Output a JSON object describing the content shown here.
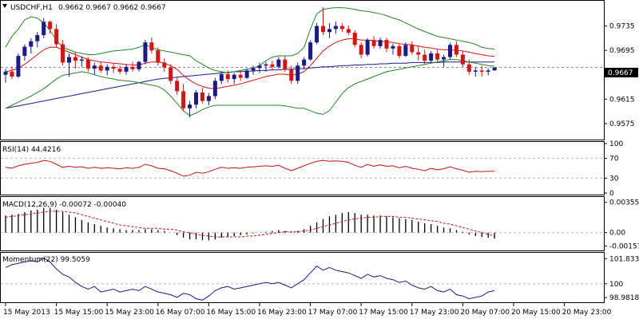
{
  "chart_data": {
    "type": "candlestick",
    "symbol": "USDCHF",
    "timeframe": "H1",
    "title": "USDCHF,H1",
    "ohlc_text": "0.9662 0.9667 0.9662 0.9667",
    "last_price_label": "0.9667",
    "colors": {
      "bull": "#1a1a8c",
      "bear": "#e01010",
      "bollinger": "#1f8a1f",
      "ma_red": "#e01010",
      "ma_blue": "#1a1a8c",
      "rsi_line": "#cc1010",
      "macd_hist": "#000000",
      "macd_signal": "#cc1010",
      "momentum_line": "#1a1a8c",
      "grid": "#b8b8b8",
      "axis": "#000000"
    },
    "main_pane": {
      "ylim": [
        0.955,
        0.9775
      ],
      "yticks": [
        "0.9735",
        "0.9695",
        "0.9655",
        "0.9615",
        "0.9575"
      ],
      "dashed_level": 0.9667,
      "candles": [
        [
          0.9655,
          0.9665,
          0.9642,
          0.966
        ],
        [
          0.966,
          0.9668,
          0.9648,
          0.9652
        ],
        [
          0.9652,
          0.969,
          0.965,
          0.9686
        ],
        [
          0.9686,
          0.9705,
          0.9678,
          0.9701
        ],
        [
          0.9701,
          0.9715,
          0.969,
          0.971
        ],
        [
          0.971,
          0.9725,
          0.97,
          0.972
        ],
        [
          0.972,
          0.9748,
          0.9715,
          0.9742
        ],
        [
          0.9742,
          0.9744,
          0.9722,
          0.973
        ],
        [
          0.973,
          0.9738,
          0.97,
          0.9705
        ],
        [
          0.9705,
          0.9712,
          0.967,
          0.9675
        ],
        [
          0.9675,
          0.969,
          0.9652,
          0.9684
        ],
        [
          0.9684,
          0.9692,
          0.9665,
          0.9678
        ],
        [
          0.9678,
          0.9685,
          0.9668,
          0.968
        ],
        [
          0.968,
          0.9684,
          0.966,
          0.9665
        ],
        [
          0.9665,
          0.9675,
          0.9655,
          0.967
        ],
        [
          0.967,
          0.9676,
          0.9658,
          0.9662
        ],
        [
          0.9662,
          0.9672,
          0.9654,
          0.9668
        ],
        [
          0.9668,
          0.9674,
          0.9658,
          0.9665
        ],
        [
          0.9665,
          0.967,
          0.9656,
          0.966
        ],
        [
          0.966,
          0.9672,
          0.9655,
          0.9668
        ],
        [
          0.9668,
          0.9676,
          0.966,
          0.9664
        ],
        [
          0.9664,
          0.9678,
          0.966,
          0.9676
        ],
        [
          0.9676,
          0.9712,
          0.9672,
          0.9708
        ],
        [
          0.9708,
          0.9716,
          0.969,
          0.9695
        ],
        [
          0.9695,
          0.97,
          0.967,
          0.9675
        ],
        [
          0.9675,
          0.9682,
          0.966,
          0.9667
        ],
        [
          0.9667,
          0.9672,
          0.964,
          0.9645
        ],
        [
          0.9645,
          0.9652,
          0.9622,
          0.9628
        ],
        [
          0.9628,
          0.964,
          0.9595,
          0.96
        ],
        [
          0.96,
          0.9612,
          0.9585,
          0.9606
        ],
        [
          0.9606,
          0.963,
          0.96,
          0.9626
        ],
        [
          0.9626,
          0.9634,
          0.9608,
          0.9612
        ],
        [
          0.9612,
          0.9625,
          0.9605,
          0.962
        ],
        [
          0.962,
          0.965,
          0.9615,
          0.9645
        ],
        [
          0.9645,
          0.966,
          0.964,
          0.9656
        ],
        [
          0.9656,
          0.9662,
          0.9642,
          0.9648
        ],
        [
          0.9648,
          0.9658,
          0.964,
          0.9655
        ],
        [
          0.9655,
          0.9662,
          0.9645,
          0.965
        ],
        [
          0.965,
          0.9665,
          0.9648,
          0.9662
        ],
        [
          0.9662,
          0.967,
          0.9655,
          0.9666
        ],
        [
          0.9666,
          0.9675,
          0.9658,
          0.967
        ],
        [
          0.967,
          0.9676,
          0.966,
          0.9672
        ],
        [
          0.9672,
          0.9678,
          0.9662,
          0.9668
        ],
        [
          0.9668,
          0.9684,
          0.9665,
          0.968
        ],
        [
          0.968,
          0.9686,
          0.966,
          0.9664
        ],
        [
          0.9664,
          0.967,
          0.964,
          0.9645
        ],
        [
          0.9645,
          0.9675,
          0.964,
          0.967
        ],
        [
          0.967,
          0.9684,
          0.9665,
          0.968
        ],
        [
          0.968,
          0.9712,
          0.9678,
          0.9708
        ],
        [
          0.9708,
          0.974,
          0.9705,
          0.9735
        ],
        [
          0.9735,
          0.9765,
          0.972,
          0.9725
        ],
        [
          0.9725,
          0.974,
          0.9715,
          0.973
        ],
        [
          0.973,
          0.9742,
          0.9722,
          0.9735
        ],
        [
          0.9735,
          0.974,
          0.9725,
          0.973
        ],
        [
          0.973,
          0.9736,
          0.972,
          0.9724
        ],
        [
          0.9724,
          0.9728,
          0.97,
          0.9704
        ],
        [
          0.9704,
          0.9708,
          0.9682,
          0.9688
        ],
        [
          0.9688,
          0.9715,
          0.9685,
          0.9712
        ],
        [
          0.9712,
          0.9718,
          0.9698,
          0.9702
        ],
        [
          0.9702,
          0.9716,
          0.9698,
          0.9712
        ],
        [
          0.9712,
          0.9716,
          0.9692,
          0.9698
        ],
        [
          0.9698,
          0.9706,
          0.9688,
          0.9702
        ],
        [
          0.9702,
          0.9706,
          0.9682,
          0.9686
        ],
        [
          0.9686,
          0.9708,
          0.9684,
          0.9704
        ],
        [
          0.9704,
          0.971,
          0.9688,
          0.9692
        ],
        [
          0.9692,
          0.9702,
          0.9678,
          0.9688
        ],
        [
          0.9688,
          0.9696,
          0.9672,
          0.9678
        ],
        [
          0.9678,
          0.9694,
          0.9675,
          0.969
        ],
        [
          0.969,
          0.9696,
          0.9676,
          0.968
        ],
        [
          0.968,
          0.9688,
          0.9668,
          0.9684
        ],
        [
          0.9684,
          0.9708,
          0.968,
          0.9704
        ],
        [
          0.9704,
          0.971,
          0.9684,
          0.9688
        ],
        [
          0.9688,
          0.9694,
          0.9668,
          0.9672
        ],
        [
          0.9672,
          0.968,
          0.9655,
          0.966
        ],
        [
          0.966,
          0.9668,
          0.9652,
          0.9662
        ],
        [
          0.9662,
          0.967,
          0.9652,
          0.966
        ],
        [
          0.966,
          0.9666,
          0.9654,
          0.9662
        ],
        [
          0.9662,
          0.9667,
          0.9662,
          0.9667
        ]
      ],
      "bb_upper": [
        0.97,
        0.9718,
        0.973,
        0.9745,
        0.975,
        0.9748,
        0.974,
        0.9728,
        0.9712,
        0.97,
        0.9696,
        0.9692,
        0.969,
        0.9688,
        0.9688,
        0.969,
        0.9692,
        0.9694,
        0.9695,
        0.9696,
        0.9697,
        0.97,
        0.9704,
        0.97,
        0.9696,
        0.9694,
        0.9692,
        0.969,
        0.9688,
        0.9686,
        0.9678,
        0.9672,
        0.9666,
        0.9662,
        0.966,
        0.9658,
        0.966,
        0.9662,
        0.9664,
        0.9666,
        0.967,
        0.9678,
        0.9684,
        0.9686,
        0.9686,
        0.9686,
        0.969,
        0.97,
        0.973,
        0.9755,
        0.9762,
        0.9764,
        0.9765,
        0.9765,
        0.9764,
        0.9762,
        0.976,
        0.9759,
        0.9757,
        0.9755,
        0.9752,
        0.9748,
        0.9745,
        0.974,
        0.9735,
        0.973,
        0.9726,
        0.9722,
        0.9718,
        0.9716,
        0.9714,
        0.9712,
        0.971,
        0.9708,
        0.9705,
        0.97,
        0.9698,
        0.9697
      ],
      "bb_lower": [
        0.96,
        0.9605,
        0.961,
        0.9615,
        0.962,
        0.9626,
        0.9632,
        0.964,
        0.9648,
        0.9654,
        0.9656,
        0.9658,
        0.966,
        0.9658,
        0.9655,
        0.9652,
        0.965,
        0.9648,
        0.9646,
        0.9645,
        0.9644,
        0.9642,
        0.964,
        0.9638,
        0.9636,
        0.963,
        0.962,
        0.9608,
        0.9596,
        0.9588,
        0.9592,
        0.9598,
        0.9602,
        0.9605,
        0.9605,
        0.9605,
        0.9605,
        0.9605,
        0.9605,
        0.9605,
        0.9605,
        0.9605,
        0.9605,
        0.9605,
        0.9604,
        0.9602,
        0.96,
        0.96,
        0.9596,
        0.9592,
        0.959,
        0.9596,
        0.961,
        0.9624,
        0.9634,
        0.964,
        0.9644,
        0.9648,
        0.9652,
        0.9656,
        0.966,
        0.9662,
        0.9664,
        0.9666,
        0.9668,
        0.967,
        0.9672,
        0.9674,
        0.9676,
        0.9678,
        0.968,
        0.968,
        0.9678,
        0.9676,
        0.9674,
        0.9672,
        0.967,
        0.9669
      ],
      "ma_red": [
        0.966,
        0.9662,
        0.9666,
        0.9672,
        0.968,
        0.9688,
        0.9696,
        0.97,
        0.97,
        0.9696,
        0.9692,
        0.9688,
        0.9684,
        0.968,
        0.9678,
        0.9676,
        0.9675,
        0.9674,
        0.9673,
        0.9672,
        0.9671,
        0.9671,
        0.9674,
        0.9676,
        0.9676,
        0.9674,
        0.967,
        0.9664,
        0.9654,
        0.9646,
        0.964,
        0.9636,
        0.9633,
        0.9632,
        0.9634,
        0.9636,
        0.9638,
        0.964,
        0.9643,
        0.9646,
        0.9649,
        0.9652,
        0.9654,
        0.9656,
        0.9656,
        0.9654,
        0.9656,
        0.966,
        0.967,
        0.9682,
        0.9694,
        0.9702,
        0.9708,
        0.9712,
        0.9714,
        0.9714,
        0.9712,
        0.9712,
        0.9711,
        0.971,
        0.9709,
        0.9708,
        0.9706,
        0.9705,
        0.9704,
        0.9702,
        0.97,
        0.9699,
        0.9697,
        0.9696,
        0.9696,
        0.9695,
        0.9694,
        0.9692,
        0.969,
        0.9688,
        0.9686,
        0.9685
      ],
      "ma_blue": [
        0.96,
        0.9602,
        0.9604,
        0.9606,
        0.9608,
        0.961,
        0.9612,
        0.9614,
        0.9616,
        0.9618,
        0.962,
        0.9622,
        0.9624,
        0.9626,
        0.9628,
        0.963,
        0.9632,
        0.9634,
        0.9636,
        0.9638,
        0.964,
        0.9642,
        0.9644,
        0.9646,
        0.9648,
        0.9649,
        0.965,
        0.9651,
        0.9652,
        0.9653,
        0.9654,
        0.9655,
        0.9656,
        0.9657,
        0.9658,
        0.9659,
        0.966,
        0.966,
        0.9661,
        0.9661,
        0.9662,
        0.9662,
        0.9663,
        0.9663,
        0.9664,
        0.9664,
        0.9665,
        0.9665,
        0.9666,
        0.9667,
        0.9668,
        0.9668,
        0.9669,
        0.967,
        0.967,
        0.9671,
        0.9671,
        0.9672,
        0.9672,
        0.9673,
        0.9673,
        0.9674,
        0.9674,
        0.9674,
        0.9675,
        0.9675,
        0.9675,
        0.9675,
        0.9675,
        0.9676,
        0.9676,
        0.9676,
        0.9676,
        0.9676,
        0.9676,
        0.9676,
        0.9676,
        0.9676
      ]
    },
    "rsi_pane": {
      "label": "RSI(14) 44.4216",
      "ylim": [
        0,
        100
      ],
      "yticks": [
        "100",
        "70",
        "30",
        "0"
      ],
      "levels": [
        70,
        30
      ],
      "values": [
        52,
        50,
        55,
        58,
        60,
        62,
        66,
        64,
        58,
        52,
        54,
        52,
        53,
        50,
        52,
        50,
        51,
        50,
        49,
        51,
        50,
        52,
        58,
        55,
        50,
        49,
        45,
        40,
        34,
        36,
        42,
        40,
        43,
        48,
        52,
        50,
        51,
        50,
        52,
        53,
        54,
        55,
        54,
        56,
        50,
        45,
        50,
        55,
        60,
        64,
        66,
        64,
        65,
        64,
        62,
        56,
        52,
        58,
        54,
        57,
        54,
        55,
        51,
        54,
        50,
        48,
        45,
        50,
        47,
        49,
        53,
        49,
        46,
        42,
        44,
        43,
        44,
        44
      ],
      "current": "44.4216"
    },
    "macd_pane": {
      "label": "MACD(12,26,9) -0.00072 -0.00040",
      "ylim": [
        -0.0019,
        0.0039
      ],
      "yticks": [
        "0.00355",
        "0.00",
        "-0.00157"
      ],
      "hist": [
        0.002,
        0.0021,
        0.0022,
        0.0024,
        0.0026,
        0.0027,
        0.0029,
        0.0029,
        0.0027,
        0.0024,
        0.0021,
        0.0018,
        0.0015,
        0.0012,
        0.001,
        0.0008,
        0.0006,
        0.0005,
        0.0004,
        0.0003,
        0.0003,
        0.0003,
        0.0004,
        0.0004,
        0.0003,
        0.0002,
        0.0,
        -0.0003,
        -0.0006,
        -0.0008,
        -0.0008,
        -0.0009,
        -0.0009,
        -0.0008,
        -0.0006,
        -0.0005,
        -0.0004,
        -0.0003,
        -0.0002,
        -0.0001,
        0.0,
        0.0001,
        0.0002,
        0.0003,
        0.0002,
        0.0001,
        0.0002,
        0.0004,
        0.0008,
        0.0012,
        0.0016,
        0.0019,
        0.0021,
        0.0023,
        0.0024,
        0.0023,
        0.0021,
        0.0021,
        0.002,
        0.002,
        0.0019,
        0.0018,
        0.0017,
        0.0016,
        0.0015,
        0.0013,
        0.0011,
        0.001,
        0.0008,
        0.0006,
        0.0005,
        0.0003,
        0.0001,
        -0.0002,
        -0.0004,
        -0.0005,
        -0.0006,
        -0.0007
      ],
      "signal": [
        0.0018,
        0.0019,
        0.002,
        0.0021,
        0.0022,
        0.0023,
        0.0024,
        0.0025,
        0.0025,
        0.0025,
        0.0024,
        0.0023,
        0.0021,
        0.0019,
        0.0017,
        0.0015,
        0.0013,
        0.0011,
        0.0009,
        0.0008,
        0.0007,
        0.0006,
        0.0005,
        0.0005,
        0.0005,
        0.0004,
        0.0004,
        0.0003,
        0.0001,
        0.0,
        -0.0002,
        -0.0003,
        -0.0004,
        -0.0005,
        -0.0005,
        -0.0005,
        -0.0005,
        -0.0005,
        -0.0004,
        -0.0004,
        -0.0003,
        -0.0002,
        -0.0001,
        0.0,
        0.0001,
        0.0001,
        0.0001,
        0.0002,
        0.0003,
        0.0005,
        0.0007,
        0.0009,
        0.0011,
        0.0013,
        0.0015,
        0.0016,
        0.0017,
        0.0018,
        0.0018,
        0.0019,
        0.0019,
        0.0019,
        0.0018,
        0.0018,
        0.0017,
        0.0016,
        0.0015,
        0.0014,
        0.0013,
        0.0011,
        0.001,
        0.0008,
        0.0006,
        0.0004,
        0.0002,
        0.0,
        -0.0002,
        -0.0004
      ]
    },
    "momentum_pane": {
      "label": "Momentum(22) 99.5059",
      "ylim": [
        98.7,
        102.1
      ],
      "yticks": [
        "101.833",
        "100",
        "98.9818"
      ],
      "dashed_level": 100,
      "values": [
        101.2,
        101.4,
        101.5,
        101.6,
        101.7,
        101.6,
        101.9,
        101.6,
        101.1,
        100.7,
        100.5,
        100.1,
        99.8,
        99.6,
        99.8,
        99.4,
        99.5,
        99.6,
        99.4,
        99.5,
        99.6,
        99.5,
        99.8,
        99.6,
        99.4,
        99.3,
        99.2,
        99.0,
        99.3,
        99.2,
        98.9,
        98.8,
        99.1,
        99.5,
        99.7,
        99.8,
        99.6,
        99.7,
        99.8,
        99.9,
        100.0,
        100.1,
        100.0,
        100.1,
        99.9,
        99.7,
        100.0,
        100.3,
        100.8,
        101.3,
        101.0,
        101.2,
        101.0,
        100.9,
        100.8,
        100.6,
        100.4,
        100.7,
        100.5,
        100.6,
        100.4,
        100.3,
        100.1,
        100.2,
        99.9,
        99.7,
        99.6,
        99.8,
        99.5,
        99.4,
        99.6,
        99.2,
        99.1,
        98.9,
        99.0,
        99.1,
        99.4,
        99.5
      ]
    },
    "time_axis": {
      "labels": [
        "15 May 2013",
        "15 May 15:00",
        "15 May 23:00",
        "16 May 07:00",
        "16 May 15:00",
        "16 May 23:00",
        "17 May 07:00",
        "17 May 15:00",
        "17 May 23:00",
        "20 May 07:00",
        "20 May 15:00",
        "20 May 23:00"
      ],
      "label_candle_index": [
        0,
        8,
        16,
        24,
        32,
        40,
        48,
        56,
        64,
        72,
        80,
        88
      ]
    }
  }
}
